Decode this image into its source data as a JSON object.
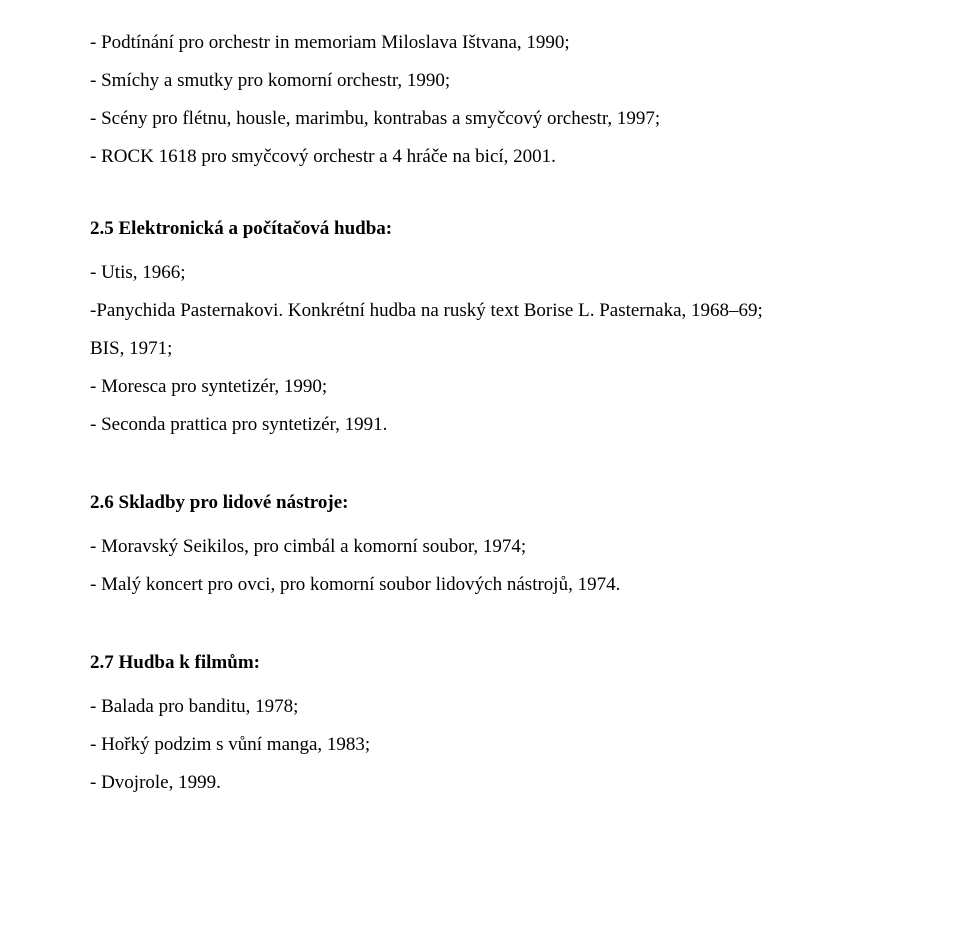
{
  "text_color": "#000000",
  "background_color": "#ffffff",
  "font_family": "Times New Roman",
  "font_size_pt": 14,
  "line_height": 2.0,
  "top_list": [
    "- Podtínání pro orchestr in memoriam Miloslava Ištvana, 1990;",
    "- Smíchy a smutky pro komorní orchestr, 1990;",
    "- Scény pro flétnu, housle, marimbu, kontrabas a smyčcový orchestr, 1997;",
    "- ROCK 1618 pro smyčcový orchestr a 4 hráče na bicí, 2001."
  ],
  "section_25": {
    "heading": "2.5 Elektronická a počítačová hudba:",
    "items": [
      "- Utis, 1966;",
      "-Panychida Pasternakovi. Konkrétní hudba na ruský text Borise L. Pasternaka, 1968–69;",
      "BIS, 1971;",
      "- Moresca pro syntetizér, 1990;",
      "- Seconda prattica pro syntetizér, 1991."
    ]
  },
  "section_26": {
    "heading": "2.6 Skladby pro lidové nástroje:",
    "items": [
      "- Moravský Seikilos, pro cimbál a komorní soubor, 1974;",
      "- Malý koncert pro ovci, pro komorní soubor lidových nástrojů, 1974."
    ]
  },
  "section_27": {
    "heading": "2.7 Hudba k filmům:",
    "items": [
      "- Balada pro banditu, 1978;",
      "- Hořký podzim s vůní manga, 1983;",
      "- Dvojrole, 1999."
    ]
  }
}
